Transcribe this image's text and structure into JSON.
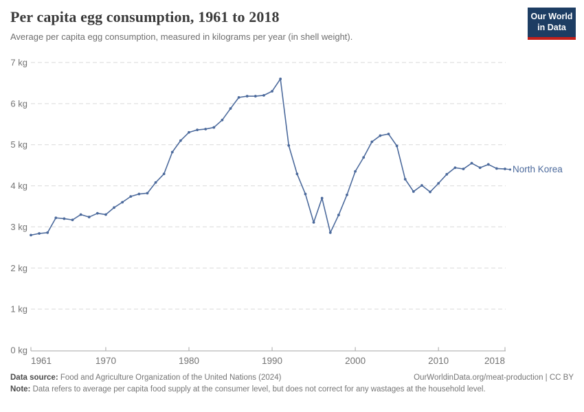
{
  "header": {
    "title": "Per capita egg consumption, 1961 to 2018",
    "subtitle": "Average per capita egg consumption, measured in kilograms per year (in shell weight)."
  },
  "logo": {
    "line1": "Our World",
    "line2": "in Data",
    "bg_color": "#1d3d63",
    "accent_color": "#c4201a"
  },
  "chart_data": {
    "type": "line",
    "title": "Per capita egg consumption, 1961 to 2018",
    "xlabel": "",
    "ylabel": "",
    "unit": "kg",
    "xlim": [
      1961,
      2018
    ],
    "ylim": [
      0,
      7
    ],
    "grid": "horizontal-dashed",
    "x_ticks": [
      1961,
      1970,
      1980,
      1990,
      2000,
      2010,
      2018
    ],
    "y_tick_labels": [
      "0 kg",
      "1 kg",
      "2 kg",
      "3 kg",
      "4 kg",
      "5 kg",
      "6 kg",
      "7 kg"
    ],
    "line_color": "#4c6a9c",
    "grid_color": "#d9d9d9",
    "axis_color": "#a5a5a5",
    "tick_label_color": "#737373",
    "end_label": "North Korea",
    "series": [
      {
        "name": "North Korea",
        "color": "#4c6a9c",
        "x": [
          1961,
          1962,
          1963,
          1964,
          1965,
          1966,
          1967,
          1968,
          1969,
          1970,
          1971,
          1972,
          1973,
          1974,
          1975,
          1976,
          1977,
          1978,
          1979,
          1980,
          1981,
          1982,
          1983,
          1984,
          1985,
          1986,
          1987,
          1988,
          1989,
          1990,
          1991,
          1992,
          1993,
          1994,
          1995,
          1996,
          1997,
          1998,
          1999,
          2000,
          2001,
          2002,
          2003,
          2004,
          2005,
          2006,
          2007,
          2008,
          2009,
          2010,
          2011,
          2012,
          2013,
          2014,
          2015,
          2016,
          2017,
          2018
        ],
        "values": [
          2.8,
          2.84,
          2.86,
          3.22,
          3.2,
          3.17,
          3.3,
          3.24,
          3.33,
          3.3,
          3.47,
          3.6,
          3.74,
          3.8,
          3.82,
          4.08,
          4.29,
          4.82,
          5.1,
          5.3,
          5.36,
          5.38,
          5.42,
          5.6,
          5.88,
          6.15,
          6.18,
          6.18,
          6.2,
          6.3,
          6.6,
          4.98,
          4.29,
          3.8,
          3.11,
          3.7,
          2.86,
          3.29,
          3.78,
          4.35,
          4.69,
          5.07,
          5.22,
          5.26,
          4.97,
          4.16,
          3.86,
          4.01,
          3.85,
          4.06,
          4.28,
          4.44,
          4.41,
          4.55,
          4.44,
          4.52,
          4.42,
          4.41
        ]
      }
    ]
  },
  "footer": {
    "source_label": "Data source:",
    "source_text": " Food and Agriculture Organization of the United Nations (2024)",
    "link_text": "OurWorldinData.org/meat-production | CC BY",
    "note_label": "Note:",
    "note_text": " Data refers to average per capita food supply at the consumer level, but does not correct for any wastages at the household level."
  }
}
